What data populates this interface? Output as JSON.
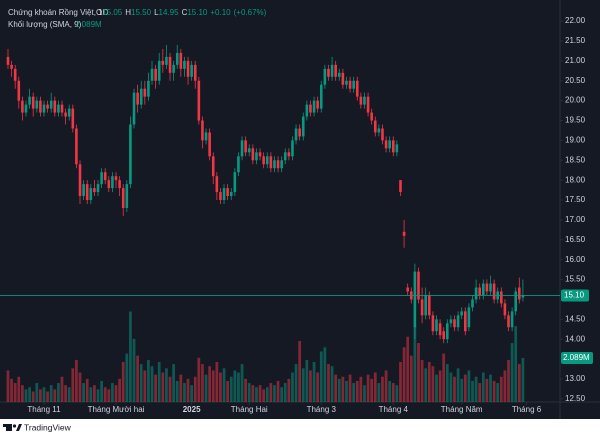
{
  "chart_data": {
    "type": "candlestick",
    "title": "Chứng khoán Rồng Việt, 1D",
    "legend_keys": [
      "O",
      "H",
      "L",
      "C"
    ],
    "legend_values": [
      15.05,
      {
        "value": 15.5,
        "label": "15.50"
      },
      14.95,
      {
        "value": 15.1,
        "label": "15.10"
      }
    ],
    "change": {
      "value": 0.1,
      "label": "+0.10"
    },
    "change_pct": {
      "value": 0.67,
      "label": "(+0.67%)"
    },
    "volume_title": "Khối lượng (SMA, 9)",
    "volume_value": {
      "value": 2.089,
      "label": "2.089M"
    },
    "last_price": {
      "value": 15.1,
      "label": "15.10"
    },
    "up_color": "#089981",
    "down_color": "#f23645",
    "xlim": [
      -0.83,
      153.3
    ],
    "xticks": [
      {
        "value": 10,
        "label": "Tháng 11"
      },
      {
        "value": 30,
        "label": "Tháng Mười hai"
      },
      {
        "value": 51,
        "label": "2025"
      },
      {
        "value": 67,
        "label": "Tháng Hai"
      },
      {
        "value": 87,
        "label": "Tháng 3"
      },
      {
        "value": 107,
        "label": "Tháng 4"
      },
      {
        "value": 126,
        "label": "Tháng Năm"
      },
      {
        "value": 144,
        "label": "Tháng 6"
      }
    ],
    "ylim": [
      12.42,
      22.33
    ],
    "yticks": [
      {
        "value": 12.5,
        "label": "12.50"
      },
      {
        "value": 13,
        "label": "13.00"
      },
      {
        "value": 14,
        "label": "14.00"
      },
      {
        "value": 14.5,
        "label": "14.50"
      },
      {
        "value": 15.5,
        "label": "15.50"
      },
      {
        "value": 16,
        "label": "16.00"
      },
      {
        "value": 16.5,
        "label": "16.50"
      },
      {
        "value": 17,
        "label": "17.00"
      },
      {
        "value": 17.5,
        "label": "17.50"
      },
      {
        "value": 18,
        "label": "18.00"
      },
      {
        "value": 18.5,
        "label": "18.50"
      },
      {
        "value": 19,
        "label": "19.00"
      },
      {
        "value": 19.5,
        "label": "19.50"
      },
      {
        "value": 20,
        "label": "20.00"
      },
      {
        "value": 20.5,
        "label": "20.50"
      },
      {
        "value": 21,
        "label": "21.00"
      },
      {
        "value": 21.5,
        "label": "21.50"
      },
      {
        "value": 22,
        "label": "22.00"
      }
    ],
    "vlim": [
      0,
      9.5
    ],
    "open": [
      21.1,
      20.9,
      20.8,
      20.5,
      20.0,
      19.7,
      19.9,
      20.1,
      19.8,
      20.0,
      19.7,
      19.9,
      19.8,
      20.0,
      19.7,
      19.9,
      19.7,
      19.6,
      19.8,
      19.3,
      18.4,
      17.6,
      17.9,
      17.5,
      17.8,
      17.7,
      17.9,
      18.2,
      18.0,
      17.8,
      18.1,
      18.0,
      17.8,
      17.3,
      17.9,
      19.4,
      20.2,
      19.9,
      20.3,
      20.1,
      20.5,
      20.8,
      20.5,
      21.0,
      20.9,
      21.1,
      20.7,
      20.9,
      21.2,
      20.8,
      21.0,
      20.6,
      20.9,
      20.5,
      19.5,
      19.0,
      19.2,
      18.6,
      18.1,
      17.7,
      17.5,
      17.8,
      17.6,
      17.7,
      18.2,
      18.6,
      19.0,
      18.7,
      18.8,
      18.5,
      18.7,
      18.6,
      18.4,
      18.6,
      18.3,
      18.5,
      18.3,
      18.5,
      18.7,
      18.6,
      19.0,
      19.3,
      19.1,
      19.6,
      19.9,
      19.7,
      20.0,
      19.8,
      20.4,
      20.8,
      20.6,
      20.9,
      20.6,
      20.7,
      20.4,
      20.5,
      20.3,
      20.5,
      20.1,
      19.9,
      20.1,
      19.7,
      19.5,
      19.2,
      19.3,
      19.0,
      18.8,
      19.0,
      18.7,
      18.0,
      16.7,
      15.3,
      15.2,
      14.3,
      15.7,
      15.0,
      14.6,
      15.1,
      14.6,
      14.2,
      14.4,
      14.2,
      14.0,
      14.4,
      14.5,
      14.3,
      14.6,
      14.7,
      14.3,
      14.8,
      15.0,
      15.3,
      15.1,
      15.4,
      15.2,
      15.4,
      15.0,
      15.2,
      14.9,
      14.6,
      14.3,
      14.7,
      15.3,
      15.05
    ],
    "high": [
      21.3,
      21.0,
      20.9,
      20.6,
      20.1,
      20.0,
      20.3,
      20.2,
      20.1,
      20.1,
      20.0,
      20.0,
      20.2,
      20.1,
      20.0,
      20.0,
      19.8,
      19.9,
      19.9,
      19.4,
      18.5,
      18.0,
      18.0,
      17.9,
      18.0,
      18.0,
      18.3,
      18.3,
      18.1,
      18.2,
      18.2,
      18.1,
      17.9,
      18.0,
      19.6,
      20.3,
      20.4,
      20.5,
      20.5,
      20.7,
      21.0,
      20.9,
      21.2,
      21.3,
      21.4,
      21.2,
      21.0,
      21.4,
      21.3,
      21.1,
      21.1,
      21.0,
      21.0,
      20.6,
      19.6,
      19.3,
      19.3,
      18.7,
      18.2,
      17.8,
      17.9,
      17.9,
      17.8,
      18.3,
      18.7,
      19.1,
      19.1,
      18.9,
      18.9,
      18.8,
      18.8,
      18.7,
      18.7,
      18.7,
      18.6,
      18.6,
      18.6,
      18.8,
      18.8,
      19.1,
      19.4,
      19.4,
      19.7,
      20.0,
      20.0,
      20.1,
      20.1,
      20.5,
      20.9,
      20.9,
      21.1,
      21.0,
      20.8,
      20.8,
      20.6,
      20.6,
      20.6,
      20.6,
      20.2,
      20.2,
      20.2,
      19.8,
      19.6,
      19.4,
      19.4,
      19.1,
      19.1,
      19.1,
      19.0,
      18.0,
      17.0,
      15.4,
      15.3,
      15.9,
      15.8,
      15.3,
      15.3,
      15.2,
      14.7,
      14.6,
      14.5,
      14.3,
      14.5,
      14.6,
      14.6,
      14.7,
      14.8,
      14.8,
      14.9,
      15.1,
      15.5,
      15.4,
      15.5,
      15.5,
      15.6,
      15.5,
      15.3,
      15.3,
      15.0,
      14.7,
      14.8,
      15.3,
      15.55,
      15.5
    ],
    "low": [
      20.8,
      20.6,
      20.3,
      19.8,
      19.5,
      19.6,
      19.8,
      19.6,
      19.7,
      19.6,
      19.6,
      19.7,
      19.7,
      19.6,
      19.6,
      19.6,
      19.4,
      19.5,
      19.2,
      18.3,
      17.4,
      17.5,
      17.4,
      17.4,
      17.6,
      17.6,
      17.8,
      17.9,
      17.7,
      17.7,
      17.8,
      17.6,
      17.1,
      17.2,
      17.8,
      19.3,
      19.7,
      19.8,
      19.9,
      20.0,
      20.4,
      20.3,
      20.4,
      20.7,
      20.8,
      20.5,
      20.5,
      20.8,
      20.6,
      20.6,
      20.4,
      20.5,
      20.3,
      19.4,
      18.8,
      18.9,
      18.5,
      17.9,
      17.5,
      17.4,
      17.4,
      17.5,
      17.5,
      17.6,
      18.1,
      18.5,
      18.6,
      18.6,
      18.4,
      18.4,
      18.5,
      18.3,
      18.3,
      18.2,
      18.2,
      18.2,
      18.2,
      18.4,
      18.5,
      18.5,
      18.9,
      19.0,
      19.0,
      19.5,
      19.6,
      19.6,
      19.7,
      19.7,
      20.3,
      20.5,
      20.5,
      20.5,
      20.5,
      20.3,
      20.3,
      20.2,
      20.2,
      20.0,
      19.8,
      19.8,
      19.6,
      19.4,
      19.1,
      19.1,
      18.9,
      18.7,
      18.7,
      18.6,
      18.6,
      17.6,
      16.3,
      15.1,
      14.9,
      14.0,
      14.9,
      14.4,
      14.5,
      14.5,
      14.1,
      14.1,
      14.0,
      13.9,
      13.9,
      14.3,
      14.2,
      14.2,
      14.5,
      14.1,
      14.2,
      14.7,
      14.9,
      15.0,
      15.0,
      15.1,
      15.1,
      14.9,
      14.9,
      14.8,
      14.5,
      14.2,
      14.2,
      14.6,
      14.9,
      14.95
    ],
    "close": [
      20.9,
      20.8,
      20.5,
      20.0,
      19.7,
      19.9,
      20.1,
      19.8,
      20.0,
      19.7,
      19.9,
      19.8,
      20.0,
      19.7,
      19.9,
      19.7,
      19.6,
      19.8,
      19.3,
      18.4,
      17.6,
      17.9,
      17.5,
      17.8,
      17.7,
      17.9,
      18.2,
      18.0,
      17.8,
      18.1,
      18.0,
      17.8,
      17.3,
      17.9,
      19.4,
      20.2,
      19.9,
      20.3,
      20.1,
      20.5,
      20.8,
      20.5,
      21.0,
      20.9,
      21.1,
      20.7,
      20.9,
      21.2,
      20.8,
      21.0,
      20.6,
      20.9,
      20.5,
      19.5,
      19.0,
      19.2,
      18.6,
      18.1,
      17.7,
      17.5,
      17.8,
      17.6,
      17.7,
      18.2,
      18.6,
      19.0,
      18.7,
      18.8,
      18.5,
      18.7,
      18.6,
      18.4,
      18.6,
      18.3,
      18.5,
      18.3,
      18.5,
      18.7,
      18.6,
      19.0,
      19.3,
      19.1,
      19.6,
      19.9,
      19.7,
      20.0,
      19.8,
      20.4,
      20.8,
      20.6,
      20.9,
      20.6,
      20.7,
      20.4,
      20.5,
      20.3,
      20.5,
      20.1,
      19.9,
      20.1,
      19.7,
      19.5,
      19.2,
      19.3,
      19.0,
      18.8,
      19.0,
      18.7,
      18.9,
      17.7,
      16.6,
      15.2,
      15.0,
      15.7,
      15.0,
      14.6,
      15.1,
      14.6,
      14.2,
      14.5,
      14.1,
      14.0,
      14.4,
      14.5,
      14.3,
      14.6,
      14.7,
      14.2,
      14.8,
      15.0,
      15.3,
      15.1,
      15.4,
      15.2,
      15.4,
      15.0,
      15.2,
      14.9,
      14.6,
      14.3,
      14.7,
      15.2,
      15.0,
      15.1
    ],
    "volume": [
      1.5,
      1.1,
      0.9,
      1.2,
      0.8,
      0.6,
      0.7,
      0.5,
      0.9,
      0.6,
      0.7,
      0.5,
      0.8,
      0.6,
      0.9,
      1.2,
      0.8,
      0.7,
      1.6,
      2.0,
      1.4,
      0.9,
      1.1,
      0.7,
      0.8,
      0.6,
      1.0,
      0.7,
      0.6,
      0.9,
      0.8,
      1.1,
      1.9,
      2.3,
      4.3,
      3.0,
      2.2,
      1.8,
      1.5,
      2.0,
      1.7,
      1.3,
      1.9,
      1.4,
      1.6,
      1.2,
      1.8,
      1.0,
      1.3,
      0.9,
      1.1,
      0.8,
      1.2,
      2.1,
      1.8,
      1.3,
      1.7,
      1.5,
      1.9,
      1.4,
      1.6,
      1.0,
      1.2,
      1.5,
      1.4,
      1.8,
      1.1,
      0.9,
      0.8,
      0.7,
      0.8,
      0.6,
      0.7,
      0.9,
      0.8,
      1.0,
      0.7,
      0.9,
      1.1,
      1.4,
      1.8,
      2.9,
      1.6,
      2.0,
      1.5,
      1.9,
      1.4,
      2.4,
      2.6,
      1.8,
      1.7,
      1.3,
      1.1,
      1.2,
      1.0,
      1.3,
      0.9,
      1.0,
      1.2,
      0.8,
      1.3,
      1.1,
      1.4,
      0.9,
      1.2,
      1.5,
      1.0,
      0.9,
      0.8,
      1.9,
      2.6,
      3.1,
      2.2,
      3.6,
      2.8,
      2.0,
      1.6,
      1.9,
      1.7,
      1.3,
      1.5,
      2.3,
      1.8,
      1.4,
      1.2,
      1.6,
      1.1,
      1.3,
      1.5,
      1.0,
      1.2,
      0.9,
      1.4,
      1.1,
      1.3,
      1.0,
      0.9,
      1.2,
      1.5,
      2.0,
      2.8,
      3.6,
      1.8,
      2.089
    ]
  },
  "footer": {
    "brand": "TradingView"
  }
}
